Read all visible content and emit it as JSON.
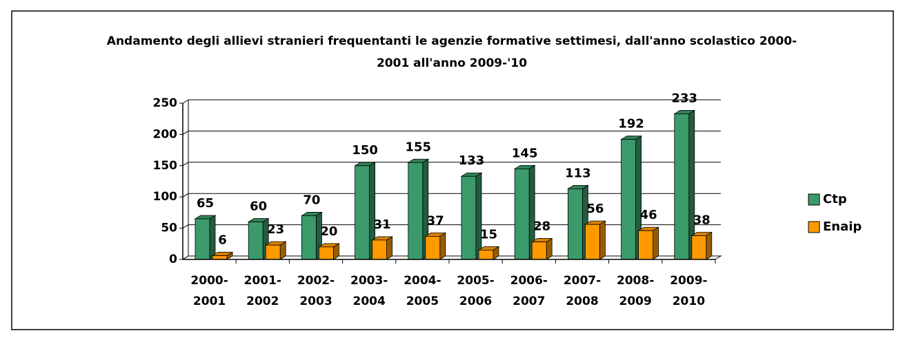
{
  "chart_data": {
    "type": "bar3d",
    "title": "Andamento degli allievi stranieri frequentanti le agenzie formative settimesi, dall'anno scolastico 2000-2001 all'anno 2009-'10",
    "categories": [
      "2000-2001",
      "2001-2002",
      "2002-2003",
      "2003-2004",
      "2004-2005",
      "2005-2006",
      "2006-2007",
      "2007-2008",
      "2008-2009",
      "2009-2010"
    ],
    "series": [
      {
        "name": "Ctp",
        "color": "#3a9a6a",
        "values": [
          65,
          60,
          70,
          150,
          155,
          133,
          145,
          113,
          192,
          233
        ]
      },
      {
        "name": "Enaip",
        "color": "#ff9900",
        "values": [
          6,
          23,
          20,
          31,
          37,
          15,
          28,
          56,
          46,
          38
        ]
      }
    ],
    "ylim": [
      0,
      250
    ],
    "yticks": [
      0,
      50,
      100,
      150,
      200,
      250
    ],
    "grid": true,
    "legend": "right"
  }
}
